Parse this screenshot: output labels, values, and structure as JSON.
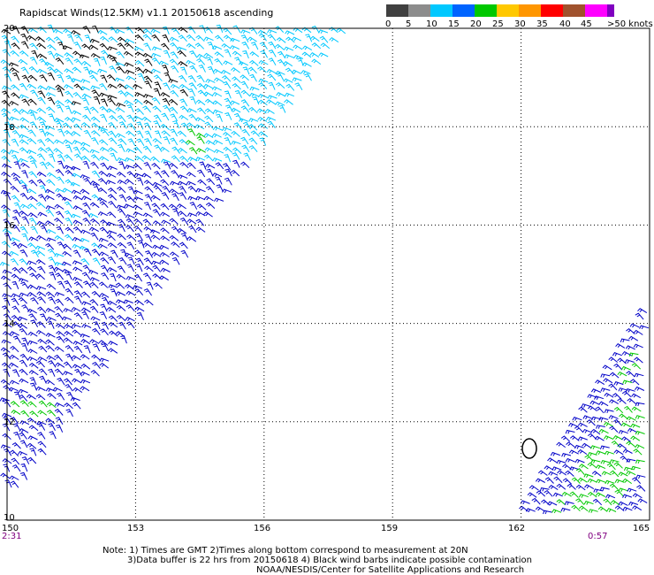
{
  "title": "Rapidscat Winds(12.5KM) v1.1 20150618 ascending",
  "colorbar": {
    "labels": [
      "0",
      "5",
      "10",
      "15",
      "20",
      "25",
      "30",
      "35",
      "40",
      "45",
      ">50 knots"
    ],
    "colors": [
      "#404040",
      "#8c8c8c",
      "#00c8ff",
      "#0064ff",
      "#00c800",
      "#ffc800",
      "#ff9600",
      "#ff0000",
      "#a0522d",
      "#ff00ff",
      "#8000c0"
    ]
  },
  "map": {
    "lon_ticks": [
      "150",
      "153",
      "156",
      "159",
      "162",
      "165"
    ],
    "lat_ticks": [
      "10",
      "12",
      "14",
      "16",
      "18",
      "20"
    ],
    "lon_range": [
      150,
      165
    ],
    "lat_range": [
      10,
      20
    ],
    "grid": "dotted",
    "time_labels": {
      "left": "2:31",
      "right": "0:57"
    },
    "barb_colors": {
      "calm": "#000000",
      "light": "#00c8ff",
      "moderate": "#0000c8",
      "fresh": "#00c800"
    }
  },
  "notes": [
    "Note: 1) Times are GMT 2)Times along bottom correspond to measurement at 20N",
    "3)Data buffer is 22 hrs from 20150618 4) Black wind barbs indicate possible contamination",
    "NOAA/NESDIS/Center for Satellite Applications and Research"
  ]
}
